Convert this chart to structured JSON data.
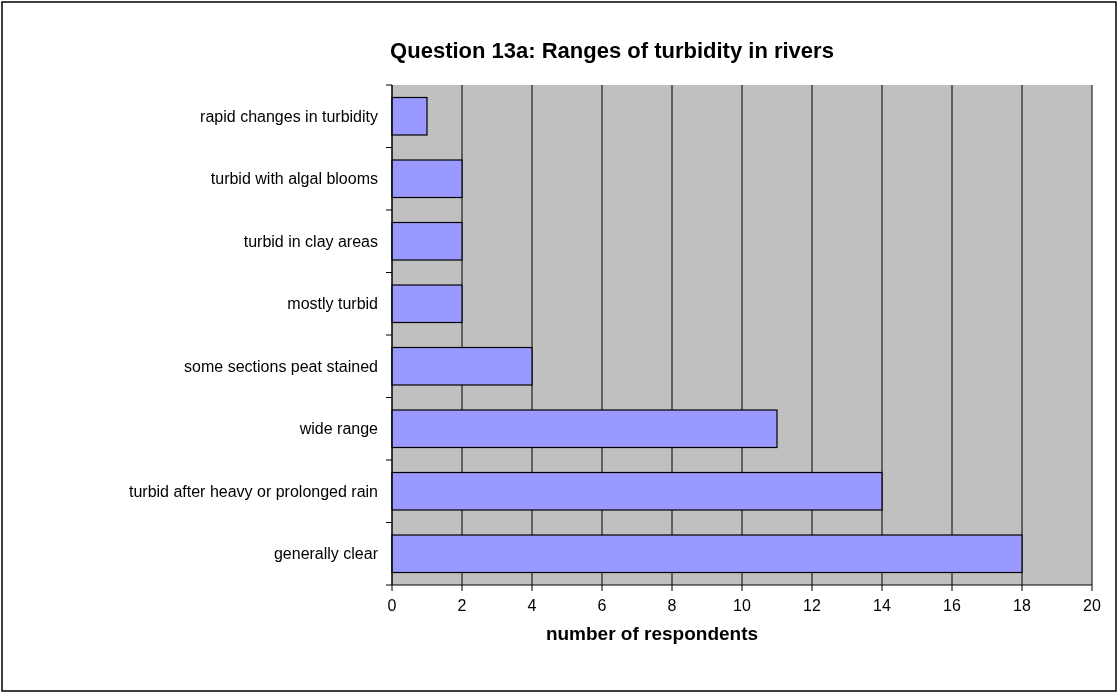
{
  "chart_data": {
    "type": "bar",
    "orientation": "horizontal",
    "title": "Question 13a: Ranges of turbidity in rivers",
    "xlabel": "number of respondents",
    "categories": [
      "rapid changes in turbidity",
      "turbid with algal blooms",
      "turbid in clay areas",
      "mostly turbid",
      "some sections peat stained",
      "wide range",
      "turbid after heavy or prolonged rain",
      "generally clear"
    ],
    "values": [
      1,
      2,
      2,
      2,
      4,
      11,
      14,
      18
    ],
    "color": "#9999ff",
    "xlim": [
      0,
      20
    ],
    "xticks": [
      0,
      2,
      4,
      6,
      8,
      10,
      12,
      14,
      16,
      18,
      20
    ],
    "grid": "x"
  }
}
